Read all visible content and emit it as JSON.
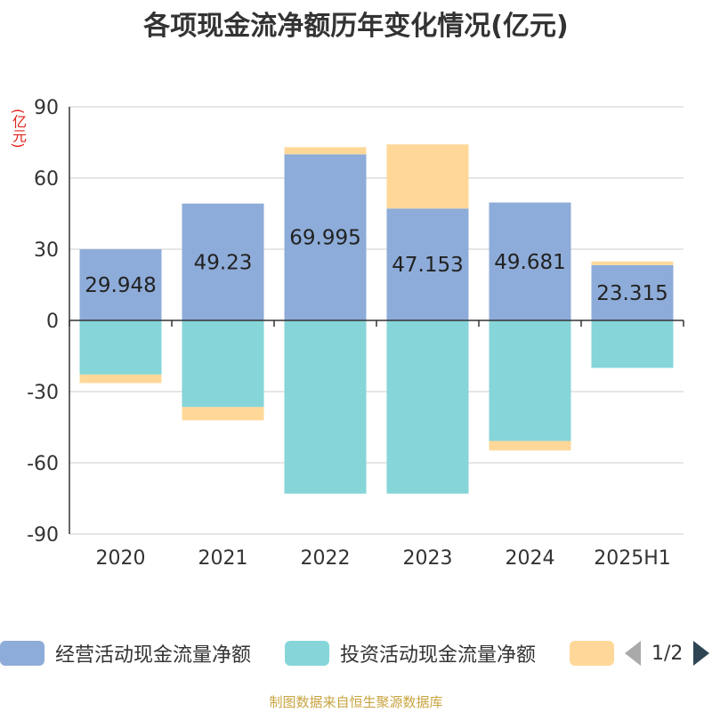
{
  "title": "各项现金流净额历年变化情况(亿元)",
  "unit_label": "(亿元)",
  "footer": "制图数据来自恒生聚源数据库",
  "legend": {
    "page": "1/2"
  },
  "colors": {
    "operating": "#8eacd9",
    "investing": "#86d5d8",
    "financing": "#ffd899",
    "axis": "#333333",
    "grid": "#cccccc"
  },
  "chart_data": {
    "type": "bar",
    "stacked": true,
    "categories": [
      "2020",
      "2021",
      "2022",
      "2023",
      "2024",
      "2025H1"
    ],
    "ylim": [
      -90,
      90
    ],
    "yticks": [
      90,
      60,
      30,
      0,
      -30,
      -60,
      -90
    ],
    "series": [
      {
        "name": "经营活动现金流量净额",
        "color_key": "operating",
        "values": [
          29.948,
          49.23,
          69.995,
          47.153,
          49.681,
          23.315
        ],
        "labels": [
          "29.948",
          "49.23",
          "69.995",
          "47.153",
          "49.681",
          "23.315"
        ]
      },
      {
        "name": "投资活动现金流量净额",
        "color_key": "investing",
        "values": [
          -22.8,
          -36.5,
          -73.0,
          -73.0,
          -50.8,
          -20.0
        ]
      },
      {
        "name": "",
        "color_key": "financing",
        "values": [
          -3.6,
          -5.6,
          3.0,
          27.0,
          -4.0,
          1.5
        ]
      }
    ],
    "grid": true,
    "legend_position": "bottom"
  }
}
